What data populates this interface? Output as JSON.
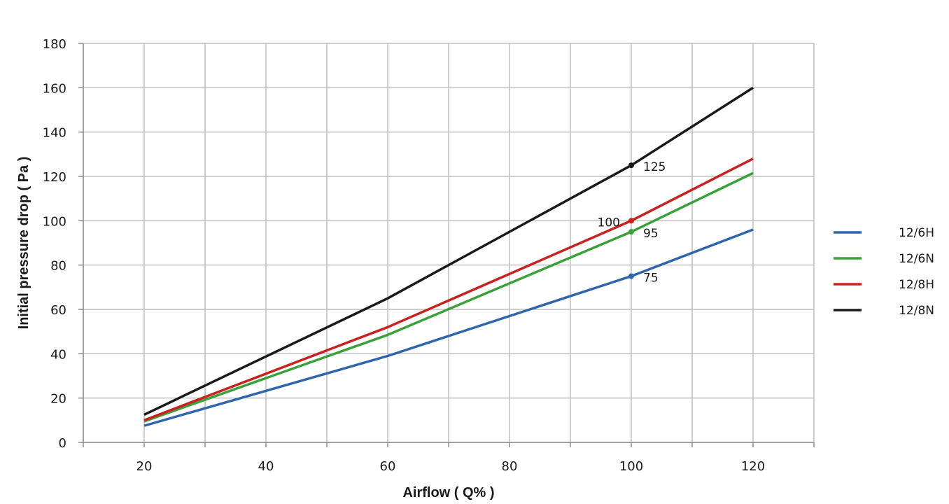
{
  "chart_data": {
    "type": "line",
    "xlabel": "Airflow ( Q% )",
    "ylabel": "Initial pressure drop ( Pa )",
    "xlim": [
      10,
      130
    ],
    "ylim": [
      0,
      180
    ],
    "x_ticks": [
      20,
      40,
      60,
      80,
      100,
      120
    ],
    "y_ticks": [
      0,
      20,
      40,
      60,
      80,
      100,
      120,
      140,
      160,
      180
    ],
    "grid": true,
    "legend_position": "right",
    "series": [
      {
        "name": "12/6H",
        "color": "#2e65ad",
        "x": [
          20,
          60,
          100,
          120
        ],
        "y": [
          7.5,
          39,
          75,
          96
        ]
      },
      {
        "name": "12/6N",
        "color": "#3aa13a",
        "x": [
          20,
          60,
          100,
          120
        ],
        "y": [
          9.5,
          48.5,
          95,
          121.5
        ]
      },
      {
        "name": "12/8H",
        "color": "#c9211e",
        "x": [
          20,
          60,
          100,
          120
        ],
        "y": [
          10,
          52,
          100,
          128
        ]
      },
      {
        "name": "12/8N",
        "color": "#1a1a1a",
        "x": [
          20,
          60,
          100,
          120
        ],
        "y": [
          12.5,
          65,
          125,
          160
        ]
      }
    ],
    "annotations": [
      {
        "series": "12/8N",
        "x": 100,
        "y": 125,
        "text": "125",
        "side": "right"
      },
      {
        "series": "12/8H",
        "x": 100,
        "y": 100,
        "text": "100",
        "side": "left"
      },
      {
        "series": "12/6N",
        "x": 100,
        "y": 95,
        "text": "95",
        "side": "right"
      },
      {
        "series": "12/6H",
        "x": 100,
        "y": 75,
        "text": "75",
        "side": "right"
      }
    ]
  }
}
